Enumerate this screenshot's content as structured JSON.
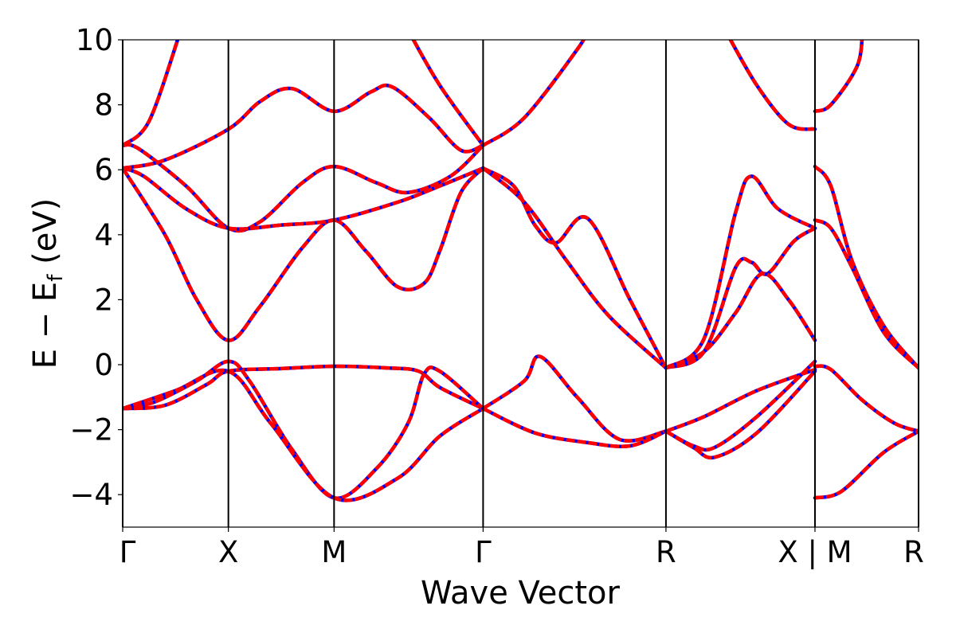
{
  "chart_data": {
    "type": "line",
    "xlabel": "Wave Vector",
    "ylabel": "E − E",
    "ylabel_sub": "f",
    "ylabel_unit": " (eV)",
    "ylim": [
      -5,
      10
    ],
    "xlim": [
      0,
      7.53
    ],
    "yticks": [
      -4,
      -2,
      0,
      2,
      4,
      6,
      8,
      10
    ],
    "ytick_labels": [
      "−4",
      "−2",
      "0",
      "2",
      "4",
      "6",
      "8",
      "10"
    ],
    "kpoints": [
      {
        "x": 0.0,
        "label": "Γ"
      },
      {
        "x": 1.0,
        "label": "X"
      },
      {
        "x": 2.0,
        "label": "M"
      },
      {
        "x": 3.41,
        "label": "Γ"
      },
      {
        "x": 5.14,
        "label": "R"
      },
      {
        "x": 6.55,
        "label": "X | M"
      },
      {
        "x": 7.53,
        "label": "R"
      }
    ],
    "series_style": [
      {
        "color": "#0000ff",
        "dash": "none"
      },
      {
        "color": "#ff0000",
        "dash": "dashed"
      }
    ],
    "bands": [
      [
        [
          0,
          -1.35
        ],
        [
          0.4,
          -1.25
        ],
        [
          0.8,
          -0.6
        ],
        [
          1.0,
          -0.2
        ],
        [
          1.5,
          -0.12
        ],
        [
          2.0,
          -0.05
        ],
        [
          2.5,
          -0.1
        ],
        [
          2.8,
          -0.2
        ],
        [
          3.0,
          -0.7
        ],
        [
          3.41,
          -1.35
        ]
      ],
      [
        [
          0,
          -1.35
        ],
        [
          0.3,
          -1.15
        ],
        [
          0.7,
          -0.5
        ],
        [
          1.0,
          0.1
        ],
        [
          1.2,
          -0.5
        ],
        [
          1.6,
          -2.6
        ],
        [
          2.0,
          -4.1
        ],
        [
          2.4,
          -3.2
        ],
        [
          2.7,
          -1.8
        ],
        [
          2.85,
          -0.3
        ],
        [
          3.0,
          -0.2
        ],
        [
          3.41,
          -1.35
        ]
      ],
      [
        [
          0,
          -1.35
        ],
        [
          0.5,
          -0.8
        ],
        [
          1.0,
          -0.2
        ],
        [
          1.4,
          -1.8
        ],
        [
          2.0,
          -4.1
        ],
        [
          2.6,
          -3.5
        ],
        [
          3.0,
          -2.2
        ],
        [
          3.41,
          -1.35
        ]
      ],
      [
        [
          3.41,
          -1.35
        ],
        [
          3.8,
          -0.5
        ],
        [
          3.95,
          0.25
        ],
        [
          4.3,
          -1.0
        ],
        [
          4.7,
          -2.3
        ],
        [
          5.14,
          -2.05
        ]
      ],
      [
        [
          3.41,
          -1.35
        ],
        [
          3.9,
          -2.1
        ],
        [
          4.4,
          -2.4
        ],
        [
          4.8,
          -2.5
        ],
        [
          5.14,
          -2.05
        ]
      ],
      [
        [
          0,
          6.75
        ],
        [
          0.15,
          6.65
        ],
        [
          0.6,
          5.5
        ],
        [
          1.0,
          4.2
        ],
        [
          1.3,
          4.4
        ],
        [
          1.7,
          5.6
        ],
        [
          2.0,
          6.1
        ],
        [
          2.4,
          5.6
        ],
        [
          2.7,
          5.3
        ],
        [
          3.1,
          5.8
        ],
        [
          3.41,
          6.75
        ]
      ],
      [
        [
          0,
          6.05
        ],
        [
          0.4,
          6.3
        ],
        [
          1.0,
          7.25
        ],
        [
          1.3,
          8.1
        ],
        [
          1.6,
          8.5
        ],
        [
          2.0,
          7.8
        ],
        [
          2.35,
          8.4
        ],
        [
          2.55,
          8.55
        ],
        [
          2.9,
          7.6
        ],
        [
          3.2,
          6.6
        ],
        [
          3.41,
          6.75
        ]
      ],
      [
        [
          0,
          6.75
        ],
        [
          0.25,
          7.5
        ],
        [
          0.55,
          10.3
        ]
      ],
      [
        [
          0,
          6.05
        ],
        [
          0.4,
          4.0
        ],
        [
          0.7,
          2.0
        ],
        [
          1.0,
          0.75
        ],
        [
          1.3,
          1.8
        ],
        [
          1.7,
          3.6
        ],
        [
          2.0,
          4.45
        ],
        [
          2.3,
          3.5
        ],
        [
          2.6,
          2.4
        ],
        [
          2.85,
          2.5
        ],
        [
          3.0,
          3.5
        ],
        [
          3.2,
          5.3
        ],
        [
          3.41,
          6.05
        ]
      ],
      [
        [
          0,
          6.05
        ],
        [
          0.2,
          5.8
        ],
        [
          0.6,
          4.8
        ],
        [
          1.0,
          4.2
        ],
        [
          1.5,
          4.3
        ],
        [
          2.0,
          4.45
        ],
        [
          2.6,
          5.0
        ],
        [
          3.0,
          5.5
        ],
        [
          3.41,
          6.05
        ]
      ],
      [
        [
          3.41,
          6.05
        ],
        [
          3.7,
          5.5
        ],
        [
          3.9,
          4.3
        ],
        [
          4.1,
          3.75
        ],
        [
          4.4,
          4.5
        ],
        [
          4.8,
          2.0
        ],
        [
          5.14,
          -0.1
        ]
      ],
      [
        [
          3.41,
          6.05
        ],
        [
          3.8,
          5.0
        ],
        [
          4.2,
          3.2
        ],
        [
          4.6,
          1.5
        ],
        [
          5.14,
          -0.1
        ]
      ],
      [
        [
          2.7,
          10.3
        ],
        [
          3.0,
          8.6
        ],
        [
          3.41,
          6.75
        ]
      ],
      [
        [
          3.41,
          6.75
        ],
        [
          3.8,
          7.6
        ],
        [
          4.3,
          9.7
        ],
        [
          4.4,
          10.3
        ]
      ],
      [
        [
          5.14,
          -0.1
        ],
        [
          5.5,
          0.4
        ],
        [
          5.8,
          3.0
        ],
        [
          5.95,
          3.15
        ],
        [
          6.1,
          2.8
        ],
        [
          6.35,
          3.8
        ],
        [
          6.55,
          4.2
        ]
      ],
      [
        [
          5.14,
          -0.1
        ],
        [
          5.5,
          0.8
        ],
        [
          5.8,
          4.7
        ],
        [
          5.95,
          5.8
        ],
        [
          6.2,
          4.8
        ],
        [
          6.55,
          4.2
        ]
      ],
      [
        [
          5.14,
          -0.1
        ],
        [
          5.5,
          0.4
        ],
        [
          5.8,
          1.6
        ],
        [
          6.05,
          2.8
        ],
        [
          6.3,
          2.0
        ],
        [
          6.55,
          0.75
        ]
      ],
      [
        [
          5.14,
          -2.05
        ],
        [
          5.5,
          -1.6
        ],
        [
          6.0,
          -0.8
        ],
        [
          6.55,
          -0.15
        ]
      ],
      [
        [
          5.14,
          -2.05
        ],
        [
          5.4,
          -2.5
        ],
        [
          5.6,
          -2.55
        ],
        [
          6.0,
          -1.6
        ],
        [
          6.55,
          0.1
        ]
      ],
      [
        [
          5.14,
          -2.05
        ],
        [
          5.4,
          -2.55
        ],
        [
          5.6,
          -2.85
        ],
        [
          6.0,
          -2.1
        ],
        [
          6.55,
          -0.2
        ]
      ],
      [
        [
          5.7,
          10.3
        ],
        [
          6.0,
          8.6
        ],
        [
          6.3,
          7.4
        ],
        [
          6.55,
          7.25
        ]
      ],
      [
        [
          6.55,
          -0.05
        ],
        [
          6.7,
          -0.15
        ],
        [
          7.0,
          -1.1
        ],
        [
          7.3,
          -1.8
        ],
        [
          7.53,
          -2.05
        ]
      ],
      [
        [
          6.55,
          -4.1
        ],
        [
          6.8,
          -3.9
        ],
        [
          7.2,
          -2.7
        ],
        [
          7.53,
          -2.05
        ]
      ],
      [
        [
          6.55,
          6.1
        ],
        [
          6.7,
          5.5
        ],
        [
          6.9,
          3.2
        ],
        [
          7.2,
          1.2
        ],
        [
          7.53,
          -0.1
        ]
      ],
      [
        [
          6.55,
          4.45
        ],
        [
          6.7,
          4.2
        ],
        [
          6.9,
          3.0
        ],
        [
          7.2,
          1.0
        ],
        [
          7.53,
          -0.1
        ]
      ],
      [
        [
          6.55,
          7.8
        ],
        [
          6.7,
          8.0
        ],
        [
          6.95,
          9.2
        ],
        [
          7.0,
          10.3
        ]
      ]
    ]
  }
}
